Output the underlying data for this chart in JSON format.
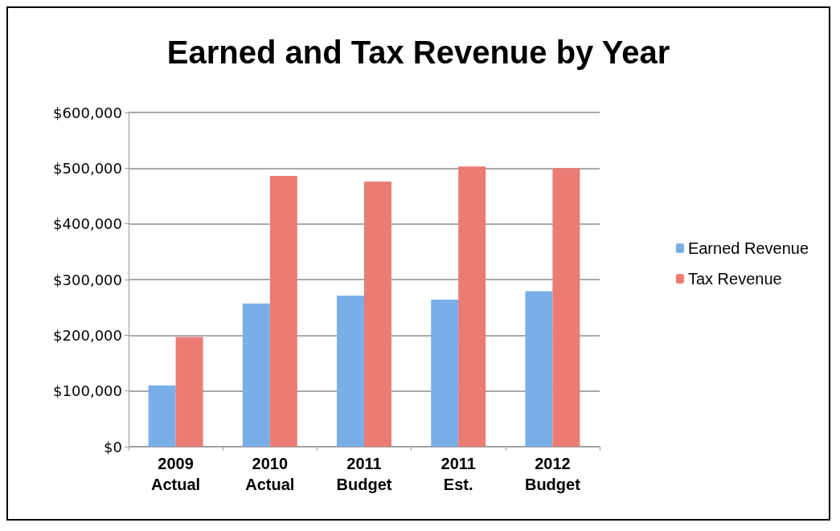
{
  "chart_data": {
    "type": "bar",
    "title": "Earned and Tax Revenue by Year",
    "categories": [
      "2009\nActual",
      "2010\nActual",
      "2011\nBudget",
      "2011\nEst.",
      "2012\nBudget"
    ],
    "series": [
      {
        "name": "Earned Revenue",
        "color": "#7aaee8",
        "values": [
          110000,
          257000,
          271000,
          264000,
          279000
        ]
      },
      {
        "name": "Tax Revenue",
        "color": "#ea7c74",
        "values": [
          197000,
          486000,
          476000,
          503000,
          500000
        ]
      }
    ],
    "ylim": [
      0,
      600000
    ],
    "yticks": [
      {
        "value": 0,
        "label": "$0"
      },
      {
        "value": 100000,
        "label": "$100,000"
      },
      {
        "value": 200000,
        "label": "$200,000"
      },
      {
        "value": 300000,
        "label": "$300,000"
      },
      {
        "value": 400000,
        "label": "$400,000"
      },
      {
        "value": 500000,
        "label": "$500,000"
      },
      {
        "value": 600000,
        "label": "$600,000"
      }
    ],
    "grid": "y",
    "legend": "right"
  }
}
